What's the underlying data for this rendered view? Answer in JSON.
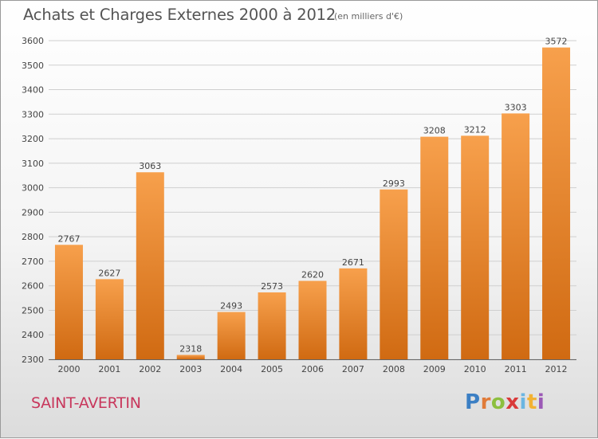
{
  "title": "Achats et Charges Externes 2000 à 2012",
  "unit_note": "(en milliers d'€)",
  "commune": "SAINT-AVERTIN",
  "logo": {
    "text": "Proxiti",
    "colors": [
      "#3b7fc4",
      "#e07b39",
      "#8cbf3f",
      "#d93a3a",
      "#6bb6e2",
      "#f2b233",
      "#9b59b6"
    ]
  },
  "chart_data": {
    "type": "bar",
    "categories": [
      "2000",
      "2001",
      "2002",
      "2003",
      "2004",
      "2005",
      "2006",
      "2007",
      "2008",
      "2009",
      "2010",
      "2011",
      "2012"
    ],
    "values": [
      2767,
      2627,
      3063,
      2318,
      2493,
      2573,
      2620,
      2671,
      2993,
      3208,
      3212,
      3303,
      3572
    ],
    "ylim": [
      2300,
      3600
    ],
    "yticks": [
      2300,
      2400,
      2500,
      2600,
      2700,
      2800,
      2900,
      3000,
      3100,
      3200,
      3300,
      3400,
      3500,
      3600
    ],
    "grid": true,
    "bar_color_top": "#f7a04c",
    "bar_color_bottom": "#d06a12"
  }
}
